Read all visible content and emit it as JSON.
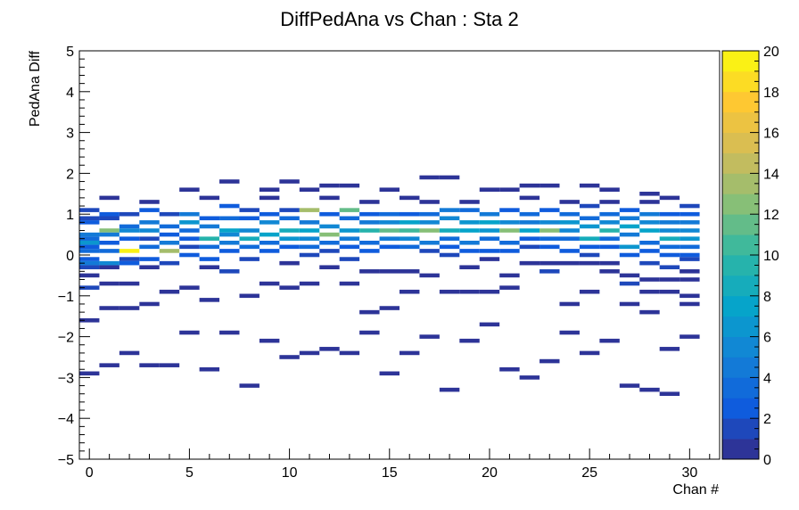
{
  "chart_data": {
    "type": "heatmap",
    "title": "DiffPedAna vs Chan : Sta 2",
    "xlabel": "Chan #",
    "ylabel": "PedAna Diff",
    "xlim": [
      -0.5,
      31.5
    ],
    "ylim": [
      -5,
      5
    ],
    "x_bin_width": 1,
    "y_bin_width": 0.1,
    "x_ticks": [
      "0",
      "5",
      "10",
      "15",
      "20",
      "25",
      "30"
    ],
    "y_ticks": [
      "−5",
      "−4",
      "−3",
      "−2",
      "−1",
      "0",
      "1",
      "2",
      "3",
      "4",
      "5"
    ],
    "colorbar": {
      "range": [
        0,
        20
      ],
      "ticks": [
        "0",
        "2",
        "4",
        "6",
        "8",
        "10",
        "12",
        "14",
        "16",
        "18",
        "20"
      ],
      "palette": [
        "#352a87",
        "#0f5cdd",
        "#1481d6",
        "#06a4ca",
        "#2eb7a4",
        "#87bf77",
        "#d1bb59",
        "#fec832",
        "#f9fb0e"
      ]
    },
    "cells": [
      [
        0,
        1.1,
        2
      ],
      [
        0,
        0.9,
        2
      ],
      [
        0,
        0.8,
        3
      ],
      [
        0,
        0.5,
        5
      ],
      [
        0,
        0.4,
        4
      ],
      [
        0,
        0.3,
        7
      ],
      [
        0,
        0.2,
        3
      ],
      [
        0,
        0.1,
        4
      ],
      [
        0,
        -0.1,
        3
      ],
      [
        0,
        -0.2,
        5
      ],
      [
        0,
        -0.3,
        2
      ],
      [
        0,
        -0.5,
        1
      ],
      [
        0,
        -0.8,
        2
      ],
      [
        0,
        -1.6,
        1
      ],
      [
        0,
        -2.9,
        1
      ],
      [
        1,
        1.4,
        1
      ],
      [
        1,
        1.0,
        3
      ],
      [
        1,
        0.9,
        2
      ],
      [
        1,
        0.6,
        13
      ],
      [
        1,
        0.5,
        5
      ],
      [
        1,
        0.3,
        3
      ],
      [
        1,
        0.1,
        4
      ],
      [
        1,
        -0.2,
        6
      ],
      [
        1,
        -0.3,
        1
      ],
      [
        1,
        -0.7,
        1
      ],
      [
        1,
        -1.3,
        1
      ],
      [
        1,
        -2.7,
        1
      ],
      [
        2,
        1.0,
        2
      ],
      [
        2,
        0.7,
        4
      ],
      [
        2,
        0.6,
        6
      ],
      [
        2,
        0.4,
        3
      ],
      [
        2,
        0.1,
        20
      ],
      [
        2,
        -0.1,
        2
      ],
      [
        2,
        -0.2,
        3
      ],
      [
        2,
        -0.7,
        1
      ],
      [
        2,
        -1.3,
        1
      ],
      [
        2,
        -2.4,
        1
      ],
      [
        3,
        1.3,
        1
      ],
      [
        3,
        1.1,
        3
      ],
      [
        3,
        0.8,
        5
      ],
      [
        3,
        0.6,
        6
      ],
      [
        3,
        0.4,
        2
      ],
      [
        3,
        0.2,
        4
      ],
      [
        3,
        -0.1,
        3
      ],
      [
        3,
        -0.3,
        1
      ],
      [
        3,
        -1.2,
        1
      ],
      [
        3,
        -2.7,
        1
      ],
      [
        4,
        1.0,
        2
      ],
      [
        4,
        0.7,
        4
      ],
      [
        4,
        0.5,
        3
      ],
      [
        4,
        0.3,
        5
      ],
      [
        4,
        0.1,
        14
      ],
      [
        4,
        -0.2,
        2
      ],
      [
        4,
        -0.9,
        1
      ],
      [
        4,
        -2.7,
        1
      ],
      [
        5,
        1.6,
        1
      ],
      [
        5,
        1.0,
        5
      ],
      [
        5,
        0.8,
        7
      ],
      [
        5,
        0.6,
        4
      ],
      [
        5,
        0.4,
        3
      ],
      [
        5,
        0.2,
        2
      ],
      [
        5,
        0.0,
        3
      ],
      [
        5,
        -0.8,
        1
      ],
      [
        5,
        -1.9,
        1
      ],
      [
        6,
        1.4,
        1
      ],
      [
        6,
        0.9,
        3
      ],
      [
        6,
        0.7,
        5
      ],
      [
        6,
        0.4,
        10
      ],
      [
        6,
        0.2,
        4
      ],
      [
        6,
        -0.1,
        3
      ],
      [
        6,
        -0.3,
        1
      ],
      [
        6,
        -1.1,
        1
      ],
      [
        6,
        -2.8,
        1
      ],
      [
        7,
        1.8,
        1
      ],
      [
        7,
        1.2,
        3
      ],
      [
        7,
        0.9,
        4
      ],
      [
        7,
        0.6,
        8
      ],
      [
        7,
        0.5,
        6
      ],
      [
        7,
        0.3,
        5
      ],
      [
        7,
        0.1,
        3
      ],
      [
        7,
        -0.4,
        2
      ],
      [
        7,
        -1.9,
        1
      ],
      [
        8,
        1.1,
        2
      ],
      [
        8,
        0.9,
        3
      ],
      [
        8,
        0.6,
        6
      ],
      [
        8,
        0.4,
        9
      ],
      [
        8,
        0.2,
        4
      ],
      [
        8,
        -0.1,
        2
      ],
      [
        8,
        -1.0,
        1
      ],
      [
        8,
        -3.2,
        1
      ],
      [
        9,
        1.6,
        1
      ],
      [
        9,
        1.4,
        1
      ],
      [
        9,
        1.0,
        3
      ],
      [
        9,
        0.8,
        6
      ],
      [
        9,
        0.5,
        8
      ],
      [
        9,
        0.3,
        4
      ],
      [
        9,
        0.1,
        3
      ],
      [
        9,
        -0.7,
        1
      ],
      [
        9,
        -2.1,
        1
      ],
      [
        10,
        1.8,
        1
      ],
      [
        10,
        1.1,
        2
      ],
      [
        10,
        0.9,
        4
      ],
      [
        10,
        0.6,
        9
      ],
      [
        10,
        0.4,
        7
      ],
      [
        10,
        0.2,
        3
      ],
      [
        10,
        -0.2,
        1
      ],
      [
        10,
        -0.8,
        1
      ],
      [
        10,
        -2.5,
        1
      ],
      [
        11,
        1.6,
        1
      ],
      [
        11,
        1.1,
        14
      ],
      [
        11,
        0.8,
        5
      ],
      [
        11,
        0.6,
        8
      ],
      [
        11,
        0.4,
        6
      ],
      [
        11,
        0.2,
        4
      ],
      [
        11,
        0.0,
        2
      ],
      [
        11,
        -0.7,
        1
      ],
      [
        11,
        -2.4,
        1
      ],
      [
        12,
        1.7,
        1
      ],
      [
        12,
        1.4,
        1
      ],
      [
        12,
        1.0,
        3
      ],
      [
        12,
        0.7,
        6
      ],
      [
        12,
        0.5,
        13
      ],
      [
        12,
        0.3,
        4
      ],
      [
        12,
        0.1,
        2
      ],
      [
        12,
        -0.3,
        1
      ],
      [
        12,
        -2.3,
        1
      ],
      [
        13,
        1.7,
        1
      ],
      [
        13,
        1.1,
        12
      ],
      [
        13,
        0.9,
        4
      ],
      [
        13,
        0.6,
        7
      ],
      [
        13,
        0.4,
        5
      ],
      [
        13,
        0.2,
        3
      ],
      [
        13,
        -0.1,
        2
      ],
      [
        13,
        -0.7,
        1
      ],
      [
        13,
        -2.4,
        1
      ],
      [
        14,
        1.3,
        1
      ],
      [
        14,
        1.0,
        3
      ],
      [
        14,
        0.8,
        5
      ],
      [
        14,
        0.6,
        10
      ],
      [
        14,
        0.3,
        4
      ],
      [
        14,
        0.1,
        3
      ],
      [
        14,
        -0.4,
        1
      ],
      [
        14,
        -1.4,
        1
      ],
      [
        14,
        -1.9,
        1
      ],
      [
        15,
        1.6,
        1
      ],
      [
        15,
        1.0,
        4
      ],
      [
        15,
        0.8,
        6
      ],
      [
        15,
        0.6,
        12
      ],
      [
        15,
        0.4,
        5
      ],
      [
        15,
        0.2,
        3
      ],
      [
        15,
        -0.4,
        1
      ],
      [
        15,
        -1.3,
        1
      ],
      [
        15,
        -2.9,
        1
      ],
      [
        16,
        1.4,
        1
      ],
      [
        16,
        1.0,
        3
      ],
      [
        16,
        0.8,
        8
      ],
      [
        16,
        0.6,
        11
      ],
      [
        16,
        0.4,
        6
      ],
      [
        16,
        0.2,
        4
      ],
      [
        16,
        -0.4,
        1
      ],
      [
        16,
        -0.9,
        1
      ],
      [
        16,
        -2.4,
        1
      ],
      [
        17,
        1.9,
        1
      ],
      [
        17,
        1.3,
        1
      ],
      [
        17,
        1.0,
        4
      ],
      [
        17,
        0.8,
        6
      ],
      [
        17,
        0.6,
        13
      ],
      [
        17,
        0.3,
        5
      ],
      [
        17,
        0.1,
        2
      ],
      [
        17,
        -0.5,
        1
      ],
      [
        17,
        -2.0,
        1
      ],
      [
        18,
        1.9,
        1
      ],
      [
        18,
        1.1,
        5
      ],
      [
        18,
        0.9,
        6
      ],
      [
        18,
        0.6,
        9
      ],
      [
        18,
        0.4,
        4
      ],
      [
        18,
        0.2,
        3
      ],
      [
        18,
        0.0,
        2
      ],
      [
        18,
        -0.9,
        1
      ],
      [
        18,
        -3.3,
        1
      ],
      [
        19,
        1.3,
        1
      ],
      [
        19,
        1.1,
        4
      ],
      [
        19,
        0.8,
        7
      ],
      [
        19,
        0.6,
        8
      ],
      [
        19,
        0.3,
        5
      ],
      [
        19,
        0.1,
        3
      ],
      [
        19,
        -0.3,
        1
      ],
      [
        19,
        -0.9,
        1
      ],
      [
        19,
        -2.1,
        1
      ],
      [
        20,
        1.6,
        1
      ],
      [
        20,
        1.0,
        5
      ],
      [
        20,
        0.8,
        8
      ],
      [
        20,
        0.6,
        7
      ],
      [
        20,
        0.4,
        4
      ],
      [
        20,
        0.1,
        3
      ],
      [
        20,
        -0.1,
        1
      ],
      [
        20,
        -0.9,
        1
      ],
      [
        20,
        -1.7,
        1
      ],
      [
        21,
        1.6,
        1
      ],
      [
        21,
        1.1,
        3
      ],
      [
        21,
        0.8,
        6
      ],
      [
        21,
        0.6,
        13
      ],
      [
        21,
        0.3,
        4
      ],
      [
        21,
        0.1,
        3
      ],
      [
        21,
        -0.5,
        1
      ],
      [
        21,
        -0.8,
        1
      ],
      [
        21,
        -2.8,
        1
      ],
      [
        22,
        1.7,
        1
      ],
      [
        22,
        1.4,
        1
      ],
      [
        22,
        1.0,
        4
      ],
      [
        22,
        0.8,
        5
      ],
      [
        22,
        0.6,
        8
      ],
      [
        22,
        0.4,
        3
      ],
      [
        22,
        0.2,
        2
      ],
      [
        22,
        -0.2,
        1
      ],
      [
        22,
        -3.0,
        1
      ],
      [
        23,
        1.7,
        1
      ],
      [
        23,
        1.1,
        3
      ],
      [
        23,
        0.8,
        6
      ],
      [
        23,
        0.6,
        13
      ],
      [
        23,
        0.4,
        4
      ],
      [
        23,
        0.2,
        3
      ],
      [
        23,
        -0.2,
        1
      ],
      [
        23,
        -0.4,
        2
      ],
      [
        23,
        -2.6,
        1
      ],
      [
        24,
        1.3,
        1
      ],
      [
        24,
        1.0,
        4
      ],
      [
        24,
        0.8,
        7
      ],
      [
        24,
        0.6,
        6
      ],
      [
        24,
        0.4,
        4
      ],
      [
        24,
        0.1,
        3
      ],
      [
        24,
        -0.2,
        1
      ],
      [
        24,
        -1.2,
        1
      ],
      [
        24,
        -1.9,
        1
      ],
      [
        25,
        1.7,
        1
      ],
      [
        25,
        1.2,
        2
      ],
      [
        25,
        0.9,
        4
      ],
      [
        25,
        0.7,
        7
      ],
      [
        25,
        0.4,
        9
      ],
      [
        25,
        0.2,
        3
      ],
      [
        25,
        0.0,
        2
      ],
      [
        25,
        -0.2,
        1
      ],
      [
        25,
        -0.9,
        1
      ],
      [
        25,
        -2.4,
        1
      ],
      [
        26,
        1.6,
        1
      ],
      [
        26,
        1.3,
        1
      ],
      [
        26,
        1.0,
        4
      ],
      [
        26,
        0.8,
        6
      ],
      [
        26,
        0.6,
        10
      ],
      [
        26,
        0.4,
        4
      ],
      [
        26,
        0.2,
        3
      ],
      [
        26,
        -0.2,
        1
      ],
      [
        26,
        -0.4,
        1
      ],
      [
        26,
        -2.1,
        1
      ],
      [
        27,
        1.1,
        3
      ],
      [
        27,
        0.9,
        5
      ],
      [
        27,
        0.7,
        8
      ],
      [
        27,
        0.5,
        5
      ],
      [
        27,
        0.2,
        7
      ],
      [
        27,
        0.0,
        3
      ],
      [
        27,
        -0.5,
        1
      ],
      [
        27,
        -0.7,
        2
      ],
      [
        27,
        -1.2,
        1
      ],
      [
        27,
        -3.2,
        1
      ],
      [
        28,
        1.5,
        1
      ],
      [
        28,
        1.3,
        1
      ],
      [
        28,
        1.0,
        5
      ],
      [
        28,
        0.8,
        6
      ],
      [
        28,
        0.6,
        8
      ],
      [
        28,
        0.3,
        4
      ],
      [
        28,
        0.1,
        3
      ],
      [
        28,
        -0.2,
        2
      ],
      [
        28,
        -0.6,
        1
      ],
      [
        28,
        -0.9,
        1
      ],
      [
        28,
        -1.4,
        1
      ],
      [
        28,
        -3.3,
        1
      ],
      [
        29,
        1.4,
        1
      ],
      [
        29,
        1.0,
        3
      ],
      [
        29,
        0.8,
        5
      ],
      [
        29,
        0.6,
        6
      ],
      [
        29,
        0.4,
        9
      ],
      [
        29,
        0.2,
        4
      ],
      [
        29,
        0.0,
        3
      ],
      [
        29,
        -0.3,
        2
      ],
      [
        29,
        -0.6,
        1
      ],
      [
        29,
        -0.9,
        1
      ],
      [
        29,
        -2.3,
        1
      ],
      [
        29,
        -3.4,
        1
      ],
      [
        30,
        1.2,
        2
      ],
      [
        30,
        1.0,
        3
      ],
      [
        30,
        0.8,
        5
      ],
      [
        30,
        0.6,
        6
      ],
      [
        30,
        0.4,
        7
      ],
      [
        30,
        0.2,
        4
      ],
      [
        30,
        0.0,
        3
      ],
      [
        30,
        -0.1,
        2
      ],
      [
        30,
        -0.4,
        1
      ],
      [
        30,
        -0.6,
        1
      ],
      [
        30,
        -1.0,
        1
      ],
      [
        30,
        -1.2,
        1
      ],
      [
        30,
        -2.0,
        1
      ]
    ]
  }
}
